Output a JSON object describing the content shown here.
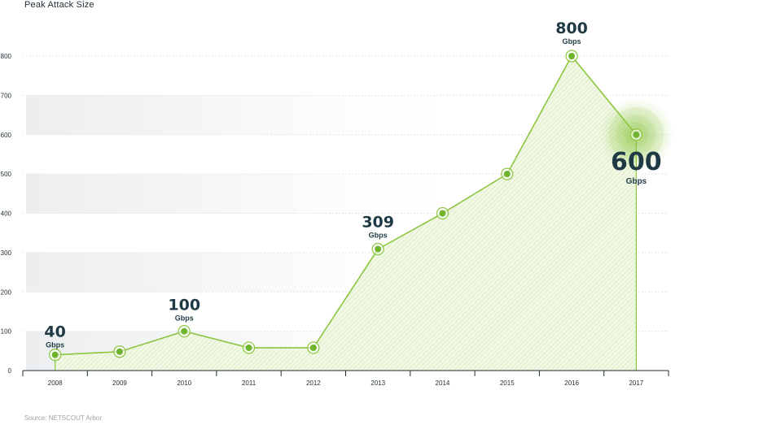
{
  "chart_data": {
    "type": "area",
    "title": "Peak Attack Size",
    "source": "Source: NETSCOUT Arbor",
    "categories": [
      "2008",
      "2009",
      "2010",
      "2011",
      "2012",
      "2013",
      "2014",
      "2015",
      "2016",
      "2017"
    ],
    "series": [
      {
        "values": [
          40,
          48,
          100,
          58,
          58,
          309,
          400,
          500,
          800,
          600
        ]
      }
    ],
    "ylim": [
      0,
      800
    ],
    "yticks": [
      0,
      100,
      200,
      300,
      400,
      500,
      600,
      700,
      800
    ],
    "grid": true,
    "annotations": [
      {
        "index": 0,
        "value": "40",
        "unit": "Gbps"
      },
      {
        "index": 2,
        "value": "100",
        "unit": "Gbps"
      },
      {
        "index": 5,
        "value": "309",
        "unit": "Gbps"
      },
      {
        "index": 8,
        "value": "800",
        "unit": "Gbps"
      },
      {
        "index": 9,
        "value": "600",
        "unit": "Gbps"
      }
    ],
    "colors": {
      "line": "#8cc63f",
      "point": "#6fb42c",
      "text": "#1f3a44"
    }
  }
}
